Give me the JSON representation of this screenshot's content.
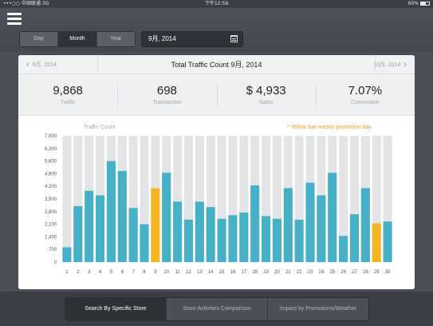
{
  "status_bar": {
    "carrier": "•••○○ 中国联通  3G",
    "time": "下午12:59",
    "battery": "60%"
  },
  "period_selector": {
    "options": [
      "Day",
      "Month",
      "Year"
    ],
    "selected": "Month"
  },
  "date_picker": {
    "value": "9月, 2014",
    "icon": "calendar-icon"
  },
  "card": {
    "prev_month": "8月, 2014",
    "title": "Total Traffic Count 9月, 2014",
    "next_month": "10月, 2014"
  },
  "kpis": [
    {
      "value": "9,868",
      "label": "Traffic"
    },
    {
      "value": "698",
      "label": "Transaction"
    },
    {
      "value": "$ 4,933",
      "label": "Sales"
    },
    {
      "value": "7.07%",
      "label": "Conversion"
    }
  ],
  "chart_data": {
    "type": "bar",
    "ylabel": "Traffic Count",
    "annotation": "* Yellow bar means promotion day",
    "ylim": [
      0,
      7000
    ],
    "yticks": [
      0,
      700,
      1400,
      2100,
      2800,
      3500,
      4200,
      4900,
      5600,
      6300,
      7000
    ],
    "ytick_labels": [
      "0",
      "700",
      "1,400",
      "2,100",
      "2,800",
      "3,500",
      "4,200",
      "4,900",
      "5,600",
      "6,300",
      "7,000"
    ],
    "categories": [
      "1",
      "2",
      "3",
      "4",
      "5",
      "6",
      "7",
      "8",
      "9",
      "10",
      "11",
      "12",
      "13",
      "14",
      "15",
      "16",
      "17",
      "18",
      "19",
      "20",
      "21",
      "22",
      "23",
      "24",
      "25",
      "26",
      "27",
      "28",
      "29",
      "30"
    ],
    "values": [
      820,
      3100,
      3950,
      3700,
      5600,
      5050,
      3000,
      2100,
      4100,
      4950,
      3350,
      2350,
      3350,
      3050,
      2400,
      2600,
      2750,
      4250,
      2550,
      2400,
      4100,
      2350,
      4400,
      3700,
      4950,
      1450,
      2650,
      4100,
      2150,
      2250
    ],
    "promotion_days": [
      9,
      29
    ],
    "colors": {
      "normal": "#46b0c6",
      "promotion": "#f4b623",
      "background_column": "#e3e4e6",
      "annotation": "#f39c12"
    }
  },
  "bottom_tabs": {
    "items": [
      "Search By Specific Store",
      "Store Activities Comparison",
      "Impact by Promotions/Weather"
    ],
    "selected": "Search By Specific Store"
  }
}
